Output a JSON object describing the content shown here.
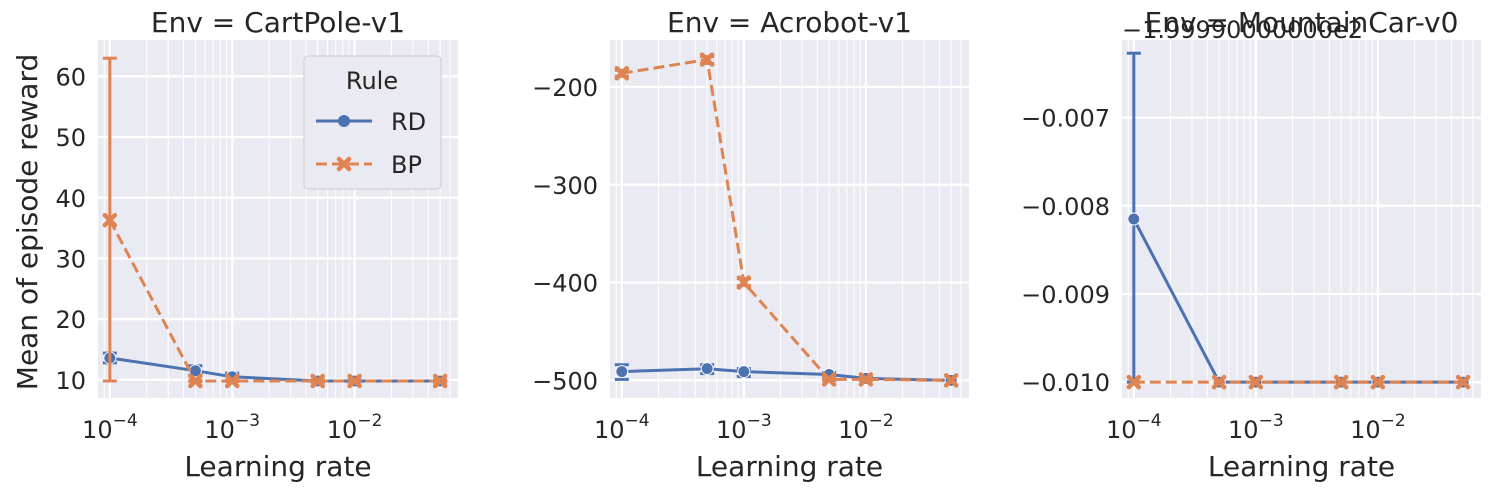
{
  "figure": {
    "ylabel": "Mean of episode reward",
    "legend": {
      "title": "Rule",
      "entries": [
        {
          "label": "RD",
          "marker": "circle",
          "dash": "solid"
        },
        {
          "label": "BP",
          "marker": "x",
          "dash": "dashed"
        }
      ],
      "placement": "top-right of first panel"
    }
  },
  "chart_data": [
    {
      "type": "line",
      "title": "Env = CartPole-v1",
      "xlabel": "Learning rate",
      "ylabel": "Mean of episode reward",
      "xscale": "log",
      "xlim": [
        8e-05,
        0.07
      ],
      "ylim": [
        7,
        66
      ],
      "x": [
        0.0001,
        0.0005,
        0.001,
        0.005,
        0.01,
        0.05
      ],
      "xticks": [
        {
          "value": 0.0001,
          "label": "10−4"
        },
        {
          "value": 0.001,
          "label": "10−3"
        },
        {
          "value": 0.01,
          "label": "10−2"
        }
      ],
      "yticks": [
        {
          "value": 10,
          "label": "10"
        },
        {
          "value": 20,
          "label": "20"
        },
        {
          "value": 30,
          "label": "30"
        },
        {
          "value": 40,
          "label": "40"
        },
        {
          "value": 50,
          "label": "50"
        },
        {
          "value": 60,
          "label": "60"
        }
      ],
      "grid": true,
      "series": [
        {
          "name": "RD",
          "values": [
            13.6,
            11.5,
            10.5,
            9.8,
            9.8,
            9.8
          ],
          "err_low": [
            12.8,
            10.8,
            10.0,
            9.6,
            9.6,
            9.6
          ],
          "err_high": [
            14.4,
            12.3,
            11.1,
            10.0,
            10.0,
            10.0
          ]
        },
        {
          "name": "BP",
          "values": [
            36.3,
            9.8,
            9.8,
            9.8,
            9.8,
            9.8
          ],
          "err_low": [
            9.8,
            9.7,
            9.7,
            9.7,
            9.7,
            9.7
          ],
          "err_high": [
            63.0,
            9.9,
            9.9,
            9.9,
            9.9,
            9.9
          ]
        }
      ]
    },
    {
      "type": "line",
      "title": "Env = Acrobot-v1",
      "xlabel": "Learning rate",
      "ylabel": "",
      "xscale": "log",
      "xlim": [
        8e-05,
        0.07
      ],
      "ylim": [
        -518,
        -152
      ],
      "x": [
        0.0001,
        0.0005,
        0.001,
        0.005,
        0.01,
        0.05
      ],
      "xticks": [
        {
          "value": 0.0001,
          "label": "10−4"
        },
        {
          "value": 0.001,
          "label": "10−3"
        },
        {
          "value": 0.01,
          "label": "10−2"
        }
      ],
      "yticks": [
        {
          "value": -200,
          "label": "−200"
        },
        {
          "value": -300,
          "label": "−300"
        },
        {
          "value": -400,
          "label": "−400"
        },
        {
          "value": -500,
          "label": "−500"
        }
      ],
      "grid": true,
      "series": [
        {
          "name": "RD",
          "values": [
            -491,
            -488,
            -491,
            -494,
            -498,
            -500
          ],
          "err_low": [
            -499,
            -493,
            -496,
            -496,
            -500,
            -500
          ],
          "err_high": [
            -484,
            -484,
            -488,
            -492,
            -497,
            -500
          ]
        },
        {
          "name": "BP",
          "values": [
            -186,
            -172,
            -400,
            -499,
            -499,
            -500
          ],
          "err_low": [
            -189,
            -176,
            -403,
            -500,
            -500,
            -500
          ],
          "err_high": [
            -183,
            -169,
            -396,
            -498,
            -498,
            -500
          ]
        }
      ]
    },
    {
      "type": "line",
      "title": "Env = MountainCar-v0",
      "offset_text": "−1.99990000000e2",
      "xlabel": "Learning rate",
      "ylabel": "",
      "xscale": "log",
      "xlim": [
        8e-05,
        0.07
      ],
      "ylim": [
        -0.01018,
        -0.00612
      ],
      "x": [
        0.0001,
        0.0005,
        0.001,
        0.005,
        0.01,
        0.05
      ],
      "xticks": [
        {
          "value": 0.0001,
          "label": "10−4"
        },
        {
          "value": 0.001,
          "label": "10−3"
        },
        {
          "value": 0.01,
          "label": "10−2"
        }
      ],
      "yticks": [
        {
          "value": -0.007,
          "label": "−0.007"
        },
        {
          "value": -0.008,
          "label": "−0.008"
        },
        {
          "value": -0.009,
          "label": "−0.009"
        },
        {
          "value": -0.01,
          "label": "−0.010"
        }
      ],
      "grid": true,
      "series": [
        {
          "name": "RD",
          "values": [
            -0.00815,
            -0.01,
            -0.01,
            -0.01,
            -0.01,
            -0.01
          ],
          "err_low": [
            -0.01,
            -0.01,
            -0.01,
            -0.01,
            -0.01,
            -0.01
          ],
          "err_high": [
            -0.00627,
            -0.01,
            -0.01,
            -0.01,
            -0.01,
            -0.01
          ]
        },
        {
          "name": "BP",
          "values": [
            -0.01,
            -0.01,
            -0.01,
            -0.01,
            -0.01,
            -0.01
          ],
          "err_low": [
            -0.01,
            -0.01,
            -0.01,
            -0.01,
            -0.01,
            -0.01
          ],
          "err_high": [
            -0.01,
            -0.01,
            -0.01,
            -0.01,
            -0.01,
            -0.01
          ]
        }
      ]
    }
  ],
  "colors": {
    "RD": "#4c72b0",
    "BP": "#dd8452",
    "panel_bg": "#eaeaf2",
    "grid": "#ffffff",
    "text": "#262626"
  }
}
